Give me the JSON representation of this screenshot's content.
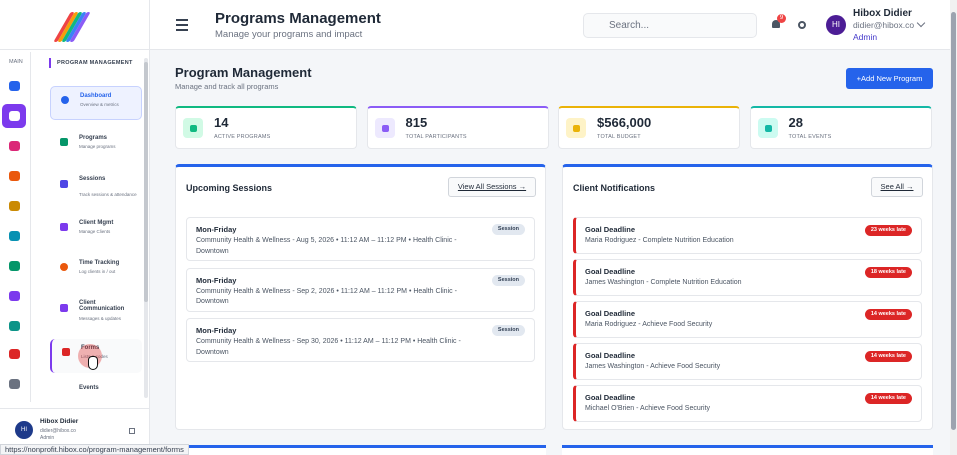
{
  "header": {
    "title": "Programs Management",
    "subtitle": "Manage your programs and impact",
    "search_placeholder": "Search...",
    "notification_count": "9",
    "user": {
      "initials": "HI",
      "name": "Hibox Didier",
      "email": "didier@hibox.co",
      "role": "Admin"
    }
  },
  "rail": {
    "label": "MAIN"
  },
  "sidebar": {
    "heading": "PROGRAM MANAGEMENT",
    "items": [
      {
        "title": "Dashboard",
        "subtitle": "Overview & metrics"
      },
      {
        "title": "Programs",
        "subtitle": "Manage programs"
      },
      {
        "title": "Sessions",
        "subtitle": "Track sessions & attendance"
      },
      {
        "title": "Client Mgmt",
        "subtitle": "Manage Clients"
      },
      {
        "title": "Time Tracking",
        "subtitle": "Log clients in / out"
      },
      {
        "title": "Client Communication",
        "subtitle": "Messages & updates"
      },
      {
        "title": "Forms",
        "subtitle": "Lists & codes"
      },
      {
        "title": "Events"
      }
    ]
  },
  "page": {
    "title": "Program Management",
    "subtitle": "Manage and track all programs",
    "button": "+Add New Program"
  },
  "stats": [
    {
      "value": 14,
      "label": "ACTIVE PROGRAMS"
    },
    {
      "value": 815,
      "label": "TOTAL PARTICIPANTS"
    },
    {
      "value": "$566,000",
      "label": "TOTAL BUDGET"
    },
    {
      "value": 28,
      "label": "TOTAL EVENTS"
    }
  ],
  "sessions": {
    "title": "Upcoming Sessions",
    "button": "View All Sessions →",
    "items": [
      {
        "title": "Mon-Friday",
        "details": "Community Health & Wellness - Aug 5, 2026 • 11:12 AM – 11:12 PM • Health Clinic - Downtown",
        "badge": "Session"
      },
      {
        "title": "Mon-Friday",
        "details": "Community Health & Wellness - Sep 2, 2026 • 11:12 AM – 11:12 PM • Health Clinic - Downtown",
        "badge": "Session"
      },
      {
        "title": "Mon-Friday",
        "details": "Community Health & Wellness - Sep 30, 2026 • 11:12 AM – 11:12 PM • Health Clinic - Downtown",
        "badge": "Session"
      }
    ]
  },
  "notifications": {
    "title": "Client Notifications",
    "button": "See All →",
    "items": [
      {
        "title": "Goal Deadline",
        "details": "Maria Rodriguez - Complete Nutrition Education",
        "badge": "23 weeks late"
      },
      {
        "title": "Goal Deadline",
        "details": "James Washington - Complete Nutrition Education",
        "badge": "18 weeks late"
      },
      {
        "title": "Goal Deadline",
        "details": "Maria Rodriguez - Achieve Food Security",
        "badge": "14 weeks late"
      },
      {
        "title": "Goal Deadline",
        "details": "James Washington - Achieve Food Security",
        "badge": "14 weeks late"
      },
      {
        "title": "Goal Deadline",
        "details": "Michael O'Brien - Achieve Food Security",
        "badge": "14 weeks late"
      }
    ]
  },
  "footer_user": {
    "initials": "HI",
    "name": "Hibox Didier",
    "email": "didier@hibox.co",
    "role": "Admin"
  },
  "status_url": "https://nonprofit.hibox.co/program-management/forms"
}
